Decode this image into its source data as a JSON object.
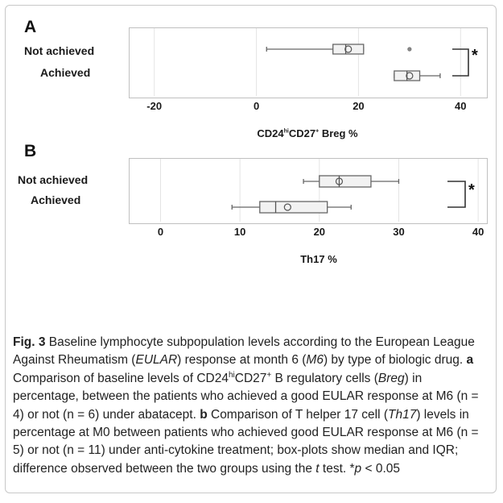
{
  "panels": {
    "a": {
      "letter": "A"
    },
    "b": {
      "letter": "B"
    }
  },
  "chart_data": [
    {
      "type": "box",
      "panel": "A",
      "xlabel_prefix": "CD24",
      "xlabel_sup1": "hi",
      "xlabel_mid": "CD27",
      "xlabel_sup2": "+",
      "xlabel_suffix": " Breg %",
      "xlim": [
        -25,
        45
      ],
      "xticks": [
        "-20",
        "0",
        "20",
        "40"
      ],
      "grid": true,
      "categories": [
        "Not achieved",
        "Achieved"
      ],
      "series": [
        {
          "category": "Not achieved",
          "whisker_low": 2,
          "q1": 15,
          "median": 17.5,
          "q3": 21,
          "whisker_high": 21,
          "mean": 18,
          "outliers": [
            30
          ]
        },
        {
          "category": "Achieved",
          "whisker_low": 27,
          "q1": 27,
          "median": 29.5,
          "q3": 32,
          "whisker_high": 36,
          "mean": 30,
          "outliers": []
        }
      ],
      "annotation": "*",
      "annotation_note": "bracket between the two groups"
    },
    {
      "type": "box",
      "panel": "B",
      "xlabel": "Th17 %",
      "xlim": [
        -4,
        41
      ],
      "xticks": [
        "0",
        "10",
        "20",
        "30",
        "40"
      ],
      "grid": true,
      "categories": [
        "Not achieved",
        "Achieved"
      ],
      "series": [
        {
          "category": "Not achieved",
          "whisker_low": 18,
          "q1": 20,
          "median": 22.5,
          "q3": 26.5,
          "whisker_high": 30,
          "mean": 22.5,
          "outliers": []
        },
        {
          "category": "Achieved",
          "whisker_low": 9,
          "q1": 12.5,
          "median": 14.5,
          "q3": 21,
          "whisker_high": 24,
          "mean": 16,
          "outliers": []
        }
      ],
      "annotation": "*"
    }
  ],
  "caption": {
    "fig_label": "Fig. 3",
    "t1": " Baseline lymphocyte subpopulation levels according to the European League Against Rheumatism (",
    "eular": "EULAR",
    "t2": ") response at month 6 (",
    "m6": "M6",
    "t3": ") by type of biologic drug. ",
    "a_label": "a",
    "t4": " Comparison of baseline levels of CD24",
    "sup_hi": "hi",
    "t5": "CD27",
    "sup_plus": "+",
    "t6": " B regulatory cells (",
    "breg": "Breg",
    "t7": ") in percentage, between the patients who achieved a good EULAR response at M6 (n = 4) or not (n = 6) under abatacept. ",
    "b_label": "b",
    "t8": " Comparison of T helper 17 cell (",
    "th17": "Th17",
    "t9": ") levels in percentage at M0 between patients who achieved good EULAR response at M6 (n = 5) or not (n = 11) under anti-cytokine treatment; box-plots show median and IQR; difference observed between the two groups using the ",
    "t_italic": "t",
    "t10": " test. *",
    "p_italic": "p",
    "t11": " < 0.05"
  }
}
